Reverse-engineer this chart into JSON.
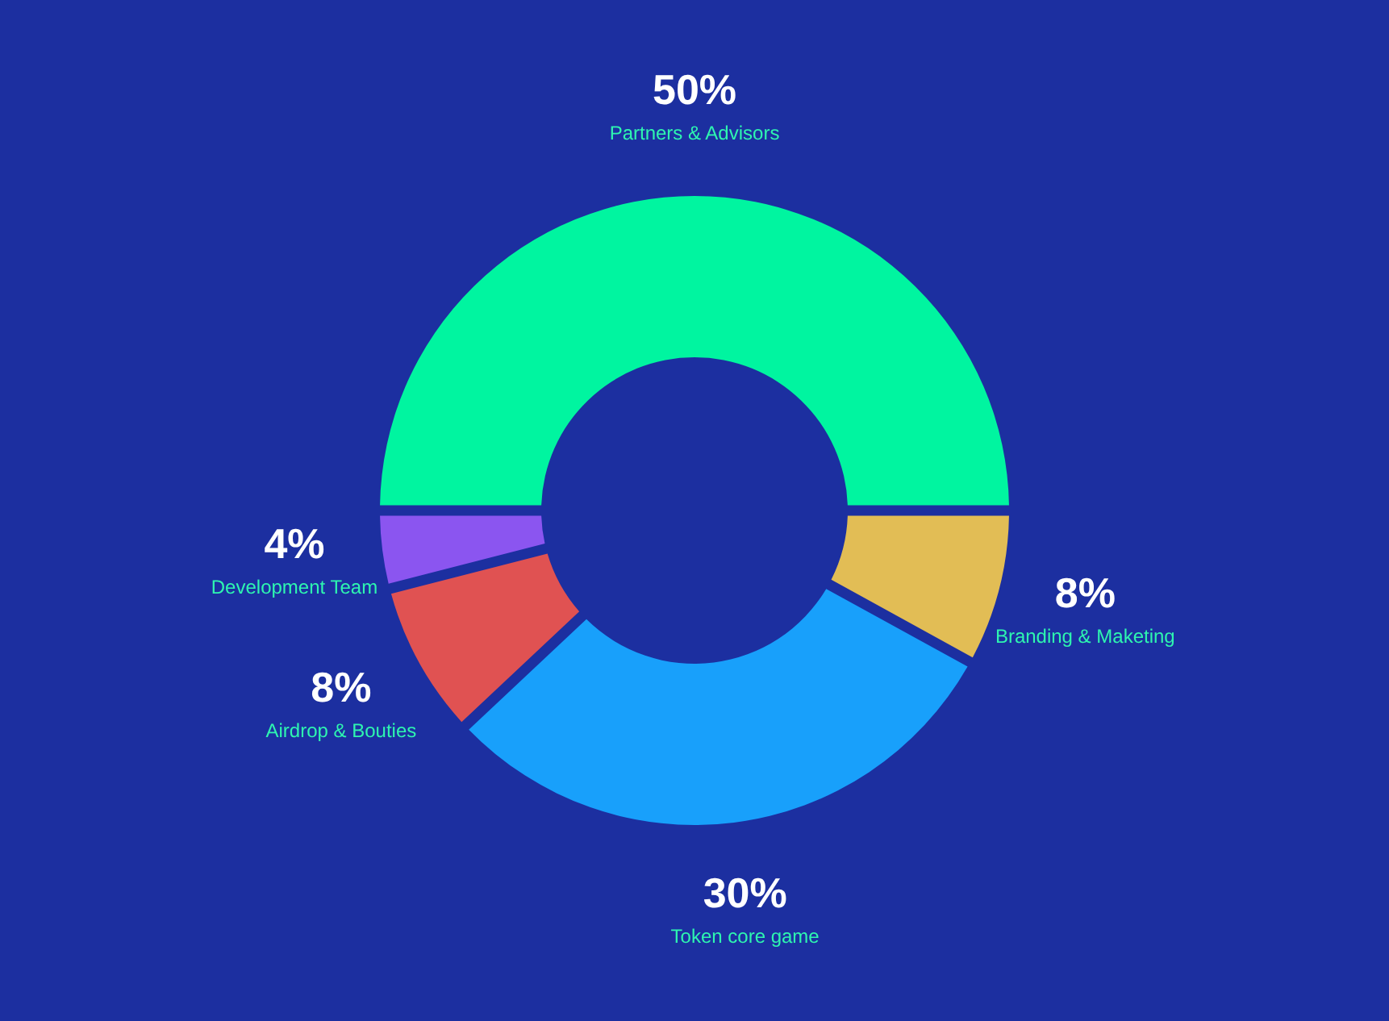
{
  "chart_data": {
    "type": "donut",
    "categories": [
      "Partners & Advisors",
      "Branding & Maketing",
      "Token core game",
      "Airdrop & Bouties",
      "Development Team"
    ],
    "values": [
      50,
      8,
      30,
      8,
      4
    ],
    "colors": [
      "#00f5a0",
      "#e2bd55",
      "#18a0fb",
      "#e05252",
      "#8b55f0"
    ],
    "value_labels": [
      "50%",
      "8%",
      "30%",
      "8%",
      "4%"
    ]
  }
}
